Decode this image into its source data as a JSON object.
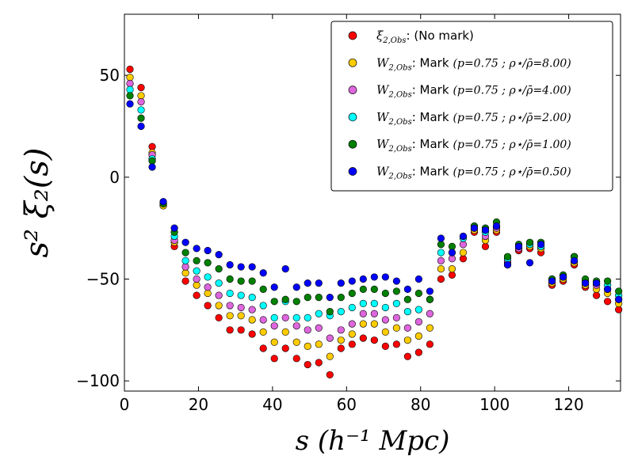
{
  "chart_data": {
    "type": "scatter",
    "title": "",
    "xlabel": "s (h⁻¹ Mpc)",
    "ylabel": "s² ξ₂(s)",
    "xlim": [
      0,
      134
    ],
    "ylim": [
      -105,
      80
    ],
    "xticks": [
      0,
      20,
      40,
      60,
      80,
      100,
      120
    ],
    "yticks": [
      50,
      0,
      -50,
      -100
    ],
    "ytick_labels": [
      "50",
      "0",
      "−50",
      "−100"
    ],
    "legend_position": "top-right",
    "x": [
      1.5,
      4.5,
      7.5,
      10.5,
      13.5,
      16.5,
      19.5,
      22.5,
      25.5,
      28.5,
      31.5,
      34.5,
      37.5,
      40.5,
      43.5,
      46.5,
      49.5,
      52.5,
      55.5,
      58.5,
      61.5,
      64.5,
      67.5,
      70.5,
      73.5,
      76.5,
      79.5,
      82.5,
      85.5,
      88.5,
      91.5,
      94.5,
      97.5,
      100.5,
      103.5,
      106.5,
      109.5,
      112.5,
      115.5,
      118.5,
      121.5,
      124.5,
      127.5,
      130.5,
      133.5
    ],
    "series": [
      {
        "name": "ξ₂,Obs: (No mark)",
        "color": "#ff0000",
        "values": [
          53,
          44,
          15,
          -14,
          -34,
          -51,
          -58,
          -63,
          -69,
          -75,
          -75,
          -77,
          -84,
          -89,
          -84,
          -89,
          -92,
          -91,
          -97,
          -84,
          -82,
          -79,
          -80,
          -83,
          -82,
          -88,
          -86,
          -82,
          -50,
          -48,
          -40,
          -27,
          -34,
          -27,
          -43,
          -36,
          -35,
          -37,
          -53,
          -51,
          -43,
          -54,
          -58,
          -61,
          -65
        ]
      },
      {
        "name": "W₂,Obs: Mark (p=0.75 ; ρ⋆/ρ̄=8.00)",
        "color": "#ffcc00",
        "values": [
          49,
          40,
          12,
          -14,
          -32,
          -47,
          -53,
          -57,
          -63,
          -68,
          -68,
          -70,
          -76,
          -81,
          -76,
          -81,
          -83,
          -82,
          -88,
          -80,
          -77,
          -72,
          -72,
          -76,
          -74,
          -80,
          -78,
          -74,
          -45,
          -45,
          -37,
          -26,
          -31,
          -26,
          -42,
          -35,
          -34,
          -35,
          -52,
          -50,
          -42,
          -53,
          -55,
          -57,
          -62
        ]
      },
      {
        "name": "W₂,Obs: Mark (p=0.75 ; ρ⋆/ρ̄=4.00)",
        "color": "#dd66dd",
        "values": [
          46,
          37,
          11,
          -13,
          -31,
          -44,
          -50,
          -54,
          -58,
          -63,
          -64,
          -65,
          -70,
          -73,
          -69,
          -73,
          -75,
          -74,
          -79,
          -75,
          -72,
          -67,
          -67,
          -70,
          -69,
          -74,
          -71,
          -67,
          -41,
          -40,
          -33,
          -25,
          -29,
          -25,
          -41,
          -35,
          -33,
          -34,
          -51,
          -49,
          -41,
          -52,
          -53,
          -55,
          -60
        ]
      },
      {
        "name": "W₂,Obs: Mark (p=0.75 ; ρ⋆/ρ̄=2.00)",
        "color": "#00ffff",
        "values": [
          43,
          33,
          9,
          -13,
          -29,
          -41,
          -46,
          -49,
          -52,
          -57,
          -58,
          -59,
          -63,
          -69,
          -61,
          -69,
          -69,
          -67,
          -68,
          -66,
          -64,
          -62,
          -62,
          -64,
          -62,
          -66,
          -65,
          -60,
          -37,
          -37,
          -30,
          -24,
          -27,
          -24,
          -40,
          -34,
          -33,
          -34,
          -50,
          -49,
          -39,
          -51,
          -52,
          -53,
          -58
        ]
      },
      {
        "name": "W₂,Obs: Mark (p=0.75 ; ρ⋆/ρ̄=1.00)",
        "color": "#008000",
        "values": [
          40,
          29,
          8,
          -13,
          -27,
          -37,
          -41,
          -42,
          -45,
          -50,
          -51,
          -51,
          -55,
          -61,
          -60,
          -61,
          -59,
          -59,
          -66,
          -59,
          -57,
          -55,
          -55,
          -57,
          -56,
          -60,
          -57,
          -60,
          -33,
          -34,
          -29,
          -24,
          -25,
          -22,
          -39,
          -33,
          -32,
          -32,
          -50,
          -48,
          -39,
          -50,
          -51,
          -51,
          -56
        ]
      },
      {
        "name": "W₂,Obs: Mark (p=0.75 ; ρ⋆/ρ̄=0.50)",
        "color": "#0000ff",
        "values": [
          36,
          25,
          5,
          -12,
          -25,
          -32,
          -35,
          -36,
          -38,
          -43,
          -44,
          -44,
          -47,
          -54,
          -45,
          -54,
          -52,
          -52,
          -59,
          -52,
          -51,
          -50,
          -49,
          -49,
          -51,
          -55,
          -50,
          -56,
          -30,
          -37,
          -29,
          -25,
          -26,
          -24,
          -43,
          -34,
          -42,
          -33,
          -51,
          -49,
          -41,
          -52,
          -52,
          -55,
          -60
        ]
      }
    ]
  },
  "legend": [
    {
      "prefix": "ξ",
      "sub": "2,Obs",
      "text": ": (No mark)",
      "param": "",
      "color": "#ff0000"
    },
    {
      "prefix": "W",
      "sub": "2,Obs",
      "text": ": Mark",
      "param": "(p=0.75 ; ρ⋆/ρ̄=8.00)",
      "color": "#ffcc00"
    },
    {
      "prefix": "W",
      "sub": "2,Obs",
      "text": ": Mark",
      "param": "(p=0.75 ; ρ⋆/ρ̄=4.00)",
      "color": "#dd66dd"
    },
    {
      "prefix": "W",
      "sub": "2,Obs",
      "text": ": Mark",
      "param": "(p=0.75 ; ρ⋆/ρ̄=2.00)",
      "color": "#00ffff"
    },
    {
      "prefix": "W",
      "sub": "2,Obs",
      "text": ": Mark",
      "param": "(p=0.75 ; ρ⋆/ρ̄=1.00)",
      "color": "#008000"
    },
    {
      "prefix": "W",
      "sub": "2,Obs",
      "text": ": Mark",
      "param": "(p=0.75 ; ρ⋆/ρ̄=0.50)",
      "color": "#0000ff"
    }
  ]
}
